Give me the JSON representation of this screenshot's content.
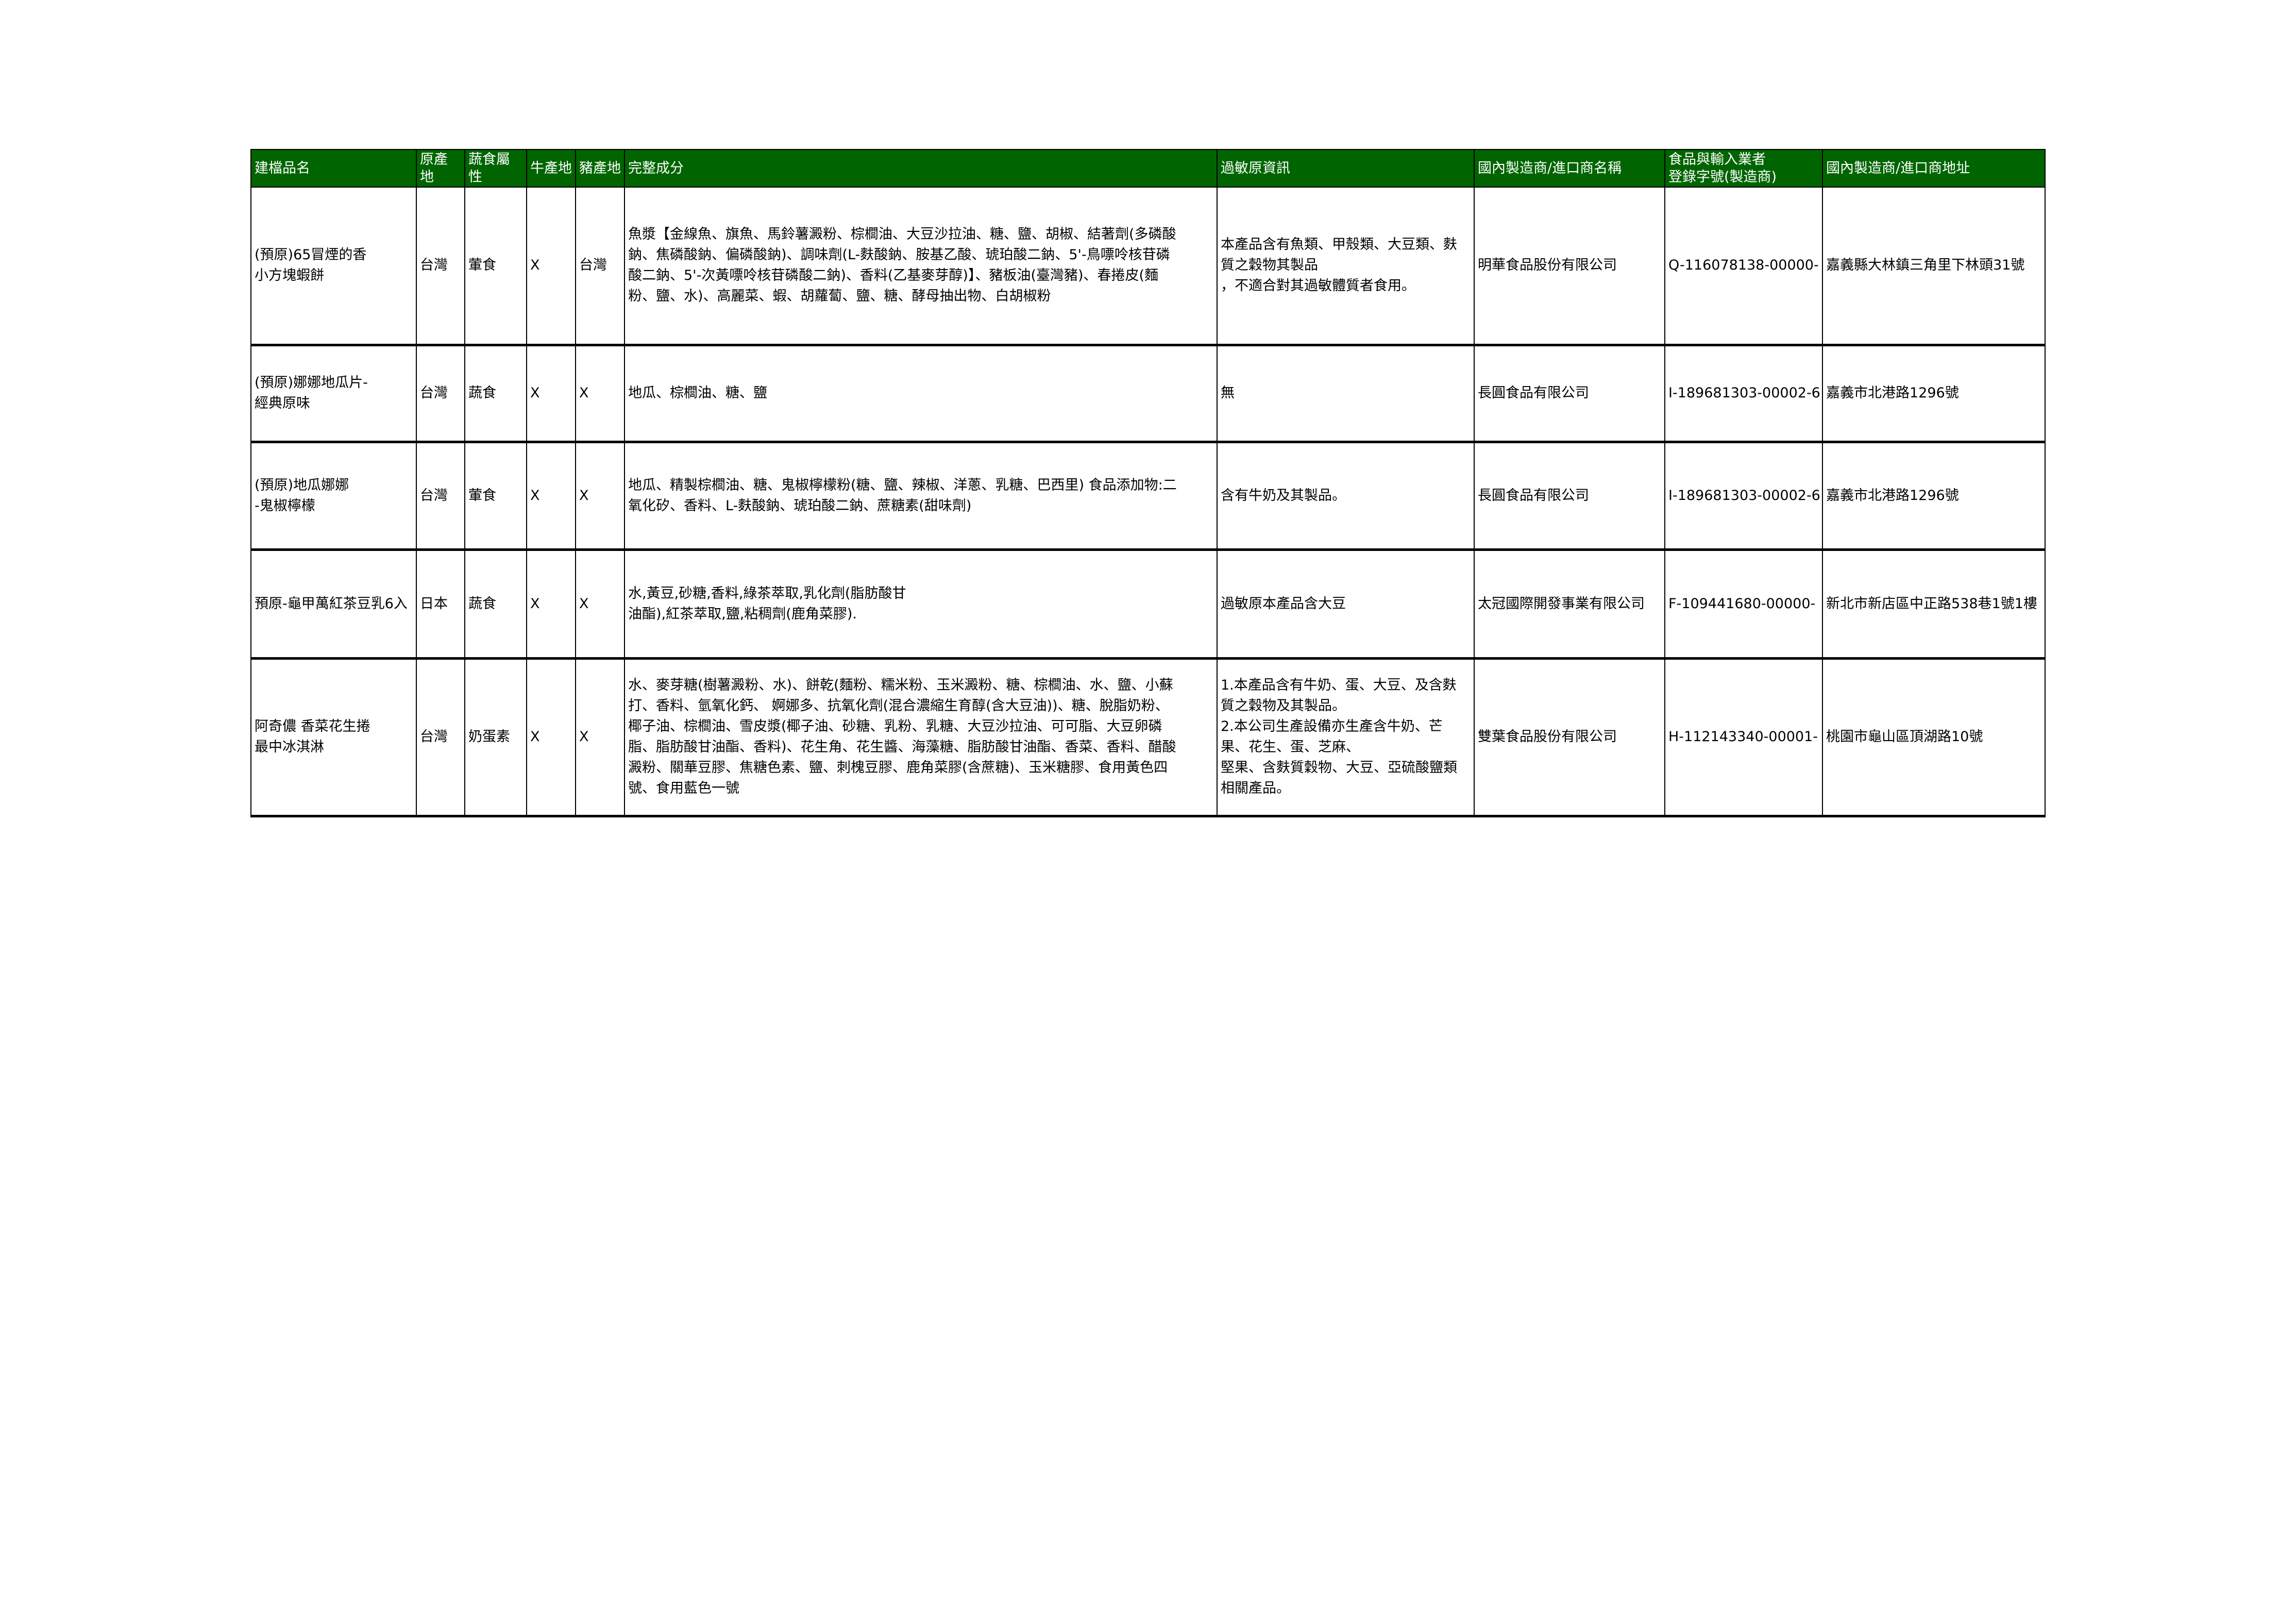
{
  "colors": {
    "header_bg": "#006400",
    "header_text": "#ffffff"
  },
  "headers": [
    "建檔品名",
    "原產\n地",
    "蔬食屬性",
    "牛產地",
    "豬產地",
    "完整成分",
    "過敏原資訊",
    "國內製造商/進口商名稱",
    "食品與輸入業者\n登錄字號(製造商)",
    "國內製造商/進口商地址"
  ],
  "rows": [
    {
      "name": "(預原)65冒煙的香\n小方塊蝦餅",
      "origin": "台灣",
      "veg": "葷食",
      "beef": "X",
      "pork": "台灣",
      "ingredients": "魚漿【金線魚、旗魚、馬鈴薯澱粉、棕櫚油、大豆沙拉油、糖、鹽、胡椒、結著劑(多磷酸\n鈉、焦磷酸鈉、偏磷酸鈉)、調味劑(L-麩酸鈉、胺基乙酸、琥珀酸二鈉、5'-鳥嘌呤核苷磷\n酸二鈉、5'-次黃嘌呤核苷磷酸二鈉)、香料(乙基麥芽醇)】、豬板油(臺灣豬)、春捲皮(麵\n粉、鹽、水)、高麗菜、蝦、胡蘿蔔、鹽、糖、酵母抽出物、白胡椒粉",
      "allergen": "本產品含有魚類、甲殼類、大豆類、麩\n質之穀物其製品\n，不適合對其過敏體質者食用。",
      "maker": "明華食品股份有限公司",
      "reg_no": "Q-116078138-00000-",
      "address": "嘉義縣大林鎮三角里下林頭31號"
    },
    {
      "name": "(預原)娜娜地瓜片-\n經典原味",
      "origin": "台灣",
      "veg": "蔬食",
      "beef": "X",
      "pork": "X",
      "ingredients": "地瓜、棕櫚油、糖、鹽",
      "allergen": "無",
      "maker": "長圓食品有限公司",
      "reg_no": "I-189681303-00002-6",
      "address": "嘉義市北港路1296號"
    },
    {
      "name": "(預原)地瓜娜娜\n-鬼椒檸檬",
      "origin": "台灣",
      "veg": "葷食",
      "beef": "X",
      "pork": "X",
      "ingredients": "地瓜、精製棕櫚油、糖、鬼椒檸檬粉(糖、鹽、辣椒、洋蔥、乳糖、巴西里) 食品添加物:二\n氧化矽、香料、L-麩酸鈉、琥珀酸二鈉、蔗糖素(甜味劑)",
      "allergen": "含有牛奶及其製品。",
      "maker": "長圓食品有限公司",
      "reg_no": "I-189681303-00002-6",
      "address": "嘉義市北港路1296號"
    },
    {
      "name": "預原-龜甲萬紅茶豆乳6入",
      "origin": "日本",
      "veg": "蔬食",
      "beef": "X",
      "pork": "X",
      "ingredients": "水,黃豆,砂糖,香料,綠茶萃取,乳化劑(脂肪酸甘\n油酯),紅茶萃取,鹽,粘稠劑(鹿角菜膠).",
      "allergen": "過敏原本產品含大豆",
      "maker": "太冠國際開發事業有限公司",
      "reg_no": "F-109441680-00000-",
      "address": "新北市新店區中正路538巷1號1樓"
    },
    {
      "name": "阿奇儂 香菜花生捲\n最中冰淇淋",
      "origin": "台灣",
      "veg": "奶蛋素",
      "beef": "X",
      "pork": "X",
      "ingredients": "水、麥芽糖(樹薯澱粉、水)、餅乾(麵粉、糯米粉、玉米澱粉、糖、棕櫚油、水、鹽、小蘇\n打、香料、氫氧化鈣、 婀娜多、抗氧化劑(混合濃縮生育醇(含大豆油))、糖、脫脂奶粉、\n椰子油、棕櫚油、雪皮漿(椰子油、砂糖、乳粉、乳糖、大豆沙拉油、可可脂、大豆卵磷\n脂、脂肪酸甘油酯、香料)、花生角、花生醬、海藻糖、脂肪酸甘油酯、香菜、香料、醋酸\n澱粉、關華豆膠、焦糖色素、鹽、刺槐豆膠、鹿角菜膠(含蔗糖)、玉米糖膠、食用黃色四\n號、食用藍色一號",
      "allergen": "1.本產品含有牛奶、蛋、大豆、及含麩\n質之穀物及其製品。\n2.本公司生產設備亦生產含牛奶、芒\n果、花生、蛋、芝麻、\n堅果、含麩質穀物、大豆、亞硫酸鹽類\n相關產品。",
      "maker": "雙葉食品股份有限公司",
      "reg_no": "H-112143340-00001-",
      "address": "桃園市龜山區頂湖路10號"
    }
  ]
}
